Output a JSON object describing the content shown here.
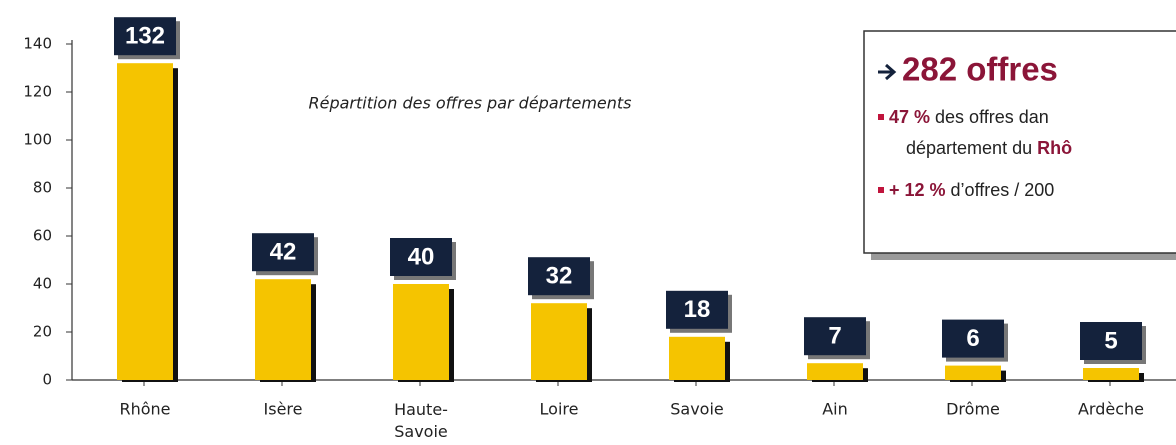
{
  "chart_data": {
    "type": "bar",
    "title": "Répartition des offres par départements",
    "categories": [
      "Rhône",
      "Isère",
      "Haute-Savoie",
      "Loire",
      "Savoie",
      "Ain",
      "Drôme",
      "Ardèche"
    ],
    "values": [
      132,
      42,
      40,
      32,
      18,
      7,
      6,
      5
    ],
    "color": "#f5c400",
    "label_color": "#14223c",
    "ylim": [
      0,
      140
    ],
    "yticks": [
      0,
      20,
      40,
      60,
      80,
      100,
      120,
      140
    ],
    "grid": false,
    "annotation": {
      "headline": "282 offres",
      "items": [
        [
          "47 %",
          " des offres dan",
          "département du ",
          "Rhô"
        ],
        [
          "+ 12 %",
          " d’offres / 200"
        ]
      ]
    }
  }
}
